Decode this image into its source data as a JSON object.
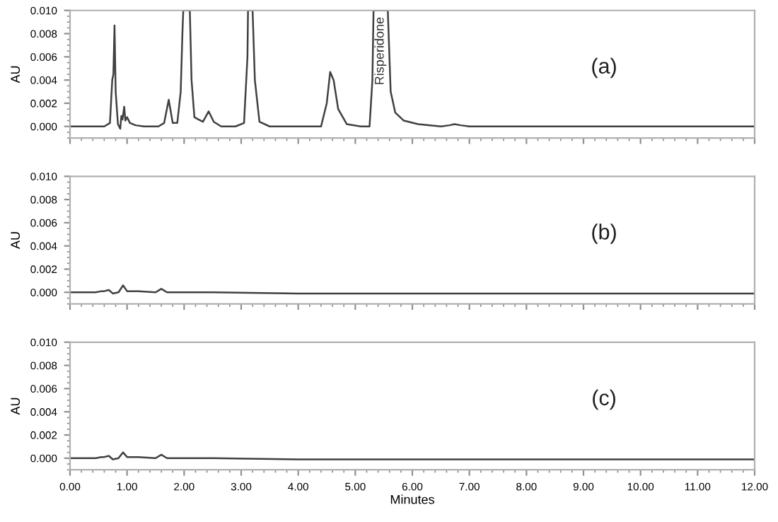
{
  "chart_data": [
    {
      "type": "line",
      "ylabel": "AU",
      "annotations": [
        "(a)",
        {
          "text": "Risperidone",
          "x": 5.44,
          "y": 0.0065
        }
      ],
      "xlim": [
        0,
        12
      ],
      "ylim": [
        -0.001,
        0.01
      ],
      "yticks": [
        {
          "value": 0,
          "label": "0.000"
        },
        {
          "value": 0.002,
          "label": "0.002"
        },
        {
          "value": 0.004,
          "label": "0.004"
        },
        {
          "value": 0.006,
          "label": "0.006"
        },
        {
          "value": 0.008,
          "label": "0.008"
        },
        {
          "value": 0.01,
          "label": "0.010"
        }
      ],
      "xticks": [
        {
          "value": 0,
          "label": null
        },
        {
          "value": 1,
          "label": null
        },
        {
          "value": 2,
          "label": null
        },
        {
          "value": 3,
          "label": null
        },
        {
          "value": 4,
          "label": null
        },
        {
          "value": 5,
          "label": null
        },
        {
          "value": 6,
          "label": null
        },
        {
          "value": 7,
          "label": null
        },
        {
          "value": 8,
          "label": null
        },
        {
          "value": 9,
          "label": null
        },
        {
          "value": 10,
          "label": null
        },
        {
          "value": 11,
          "label": null
        },
        {
          "value": 12,
          "label": null
        }
      ],
      "tick_labels": "y",
      "marker": "none",
      "line_style": "solid",
      "series": [
        {
          "color": "#404040",
          "x": [
            0,
            0.6,
            0.7,
            0.74,
            0.76,
            0.78,
            0.8,
            0.84,
            0.88,
            0.9,
            0.92,
            0.95,
            0.97,
            1.0,
            1.05,
            1.15,
            1.3,
            1.55,
            1.65,
            1.73,
            1.8,
            1.88,
            1.94,
            1.97,
            1.985,
            2.1,
            2.13,
            2.18,
            2.25,
            2.33,
            2.43,
            2.52,
            2.65,
            2.9,
            3.05,
            3.11,
            3.12,
            3.2,
            3.24,
            3.32,
            3.5,
            4.0,
            4.4,
            4.5,
            4.56,
            4.62,
            4.7,
            4.85,
            5.1,
            5.25,
            5.3,
            5.32,
            5.57,
            5.62,
            5.7,
            5.85,
            6.1,
            6.5,
            6.65,
            6.74,
            6.85,
            7.0,
            8,
            9,
            10,
            11,
            12
          ],
          "values": [
            0,
            0,
            0.0003,
            0.004,
            0.0045,
            0.0087,
            0.003,
            0.0002,
            -0.0002,
            0.0009,
            0.0006,
            0.0017,
            0.0005,
            0.0008,
            0.0003,
            0.0001,
            0,
            0,
            0.0003,
            0.0023,
            0.0003,
            0.0003,
            0.003,
            0.008,
            0.01,
            0.01,
            0.004,
            0.0008,
            0.0006,
            0.0004,
            0.0013,
            0.0004,
            0,
            0,
            0.0003,
            0.006,
            0.01,
            0.01,
            0.004,
            0.0004,
            0,
            0,
            0,
            0.002,
            0.0047,
            0.004,
            0.0015,
            0.0002,
            0,
            0,
            0.004,
            0.01,
            0.01,
            0.003,
            0.0012,
            0.0005,
            0.0002,
            0,
            0.0001,
            0.0002,
            0.0001,
            0,
            0,
            0,
            0,
            0,
            0
          ]
        }
      ]
    },
    {
      "type": "line",
      "ylabel": "AU",
      "annotations": [
        "(b)"
      ],
      "xlim": [
        0,
        12
      ],
      "ylim": [
        -0.001,
        0.01
      ],
      "yticks": [
        {
          "value": 0,
          "label": "0.000"
        },
        {
          "value": 0.002,
          "label": "0.002"
        },
        {
          "value": 0.004,
          "label": "0.004"
        },
        {
          "value": 0.006,
          "label": "0.006"
        },
        {
          "value": 0.008,
          "label": "0.008"
        },
        {
          "value": 0.01,
          "label": "0.010"
        }
      ],
      "xticks": [
        {
          "value": 0,
          "label": null
        },
        {
          "value": 1,
          "label": null
        },
        {
          "value": 2,
          "label": null
        },
        {
          "value": 3,
          "label": null
        },
        {
          "value": 4,
          "label": null
        },
        {
          "value": 5,
          "label": null
        },
        {
          "value": 6,
          "label": null
        },
        {
          "value": 7,
          "label": null
        },
        {
          "value": 8,
          "label": null
        },
        {
          "value": 9,
          "label": null
        },
        {
          "value": 10,
          "label": null
        },
        {
          "value": 11,
          "label": null
        },
        {
          "value": 12,
          "label": null
        }
      ],
      "tick_labels": "y",
      "marker": "none",
      "line_style": "solid",
      "series": [
        {
          "color": "#404040",
          "x": [
            0,
            0.45,
            0.55,
            0.6,
            0.68,
            0.75,
            0.85,
            0.93,
            1.0,
            1.2,
            1.5,
            1.6,
            1.7,
            2.5,
            4,
            6,
            8,
            10,
            12
          ],
          "values": [
            0,
            0,
            0.0001,
            0.0001,
            0.0002,
            -0.0001,
            0,
            0.0006,
            0.0001,
            0.0001,
            0,
            0.0003,
            0,
            0,
            -0.0001,
            -0.0001,
            -0.0001,
            -0.0001,
            -0.0001
          ]
        }
      ]
    },
    {
      "type": "line",
      "ylabel": "AU",
      "xlabel": "Minutes",
      "annotations": [
        "(c)"
      ],
      "xlim": [
        0,
        12
      ],
      "ylim": [
        -0.001,
        0.01
      ],
      "yticks": [
        {
          "value": 0,
          "label": "0.000"
        },
        {
          "value": 0.002,
          "label": "0.002"
        },
        {
          "value": 0.004,
          "label": "0.004"
        },
        {
          "value": 0.006,
          "label": "0.006"
        },
        {
          "value": 0.008,
          "label": "0.008"
        },
        {
          "value": 0.01,
          "label": "0.010"
        }
      ],
      "xticks": [
        {
          "value": 0,
          "label": "0.00"
        },
        {
          "value": 1,
          "label": "1.00"
        },
        {
          "value": 2,
          "label": "2.00"
        },
        {
          "value": 3,
          "label": "3.00"
        },
        {
          "value": 4,
          "label": "4.00"
        },
        {
          "value": 5,
          "label": "5.00"
        },
        {
          "value": 6,
          "label": "6.00"
        },
        {
          "value": 7,
          "label": "7.00"
        },
        {
          "value": 8,
          "label": "8.00"
        },
        {
          "value": 9,
          "label": "9.00"
        },
        {
          "value": 10,
          "label": "10.00"
        },
        {
          "value": 11,
          "label": "11.00"
        },
        {
          "value": 12,
          "label": "12.00"
        }
      ],
      "marker": "none",
      "line_style": "solid",
      "series": [
        {
          "color": "#404040",
          "x": [
            0,
            0.45,
            0.55,
            0.6,
            0.68,
            0.75,
            0.85,
            0.93,
            1.0,
            1.2,
            1.5,
            1.6,
            1.7,
            2.5,
            4,
            6,
            8,
            10,
            12
          ],
          "values": [
            0,
            0,
            0.0001,
            0.0001,
            0.0002,
            -0.0001,
            0,
            0.0005,
            0.0001,
            0.0001,
            0,
            0.0003,
            0,
            0,
            -0.0001,
            -0.0001,
            -0.0001,
            -0.0001,
            -0.0001
          ]
        }
      ]
    }
  ]
}
